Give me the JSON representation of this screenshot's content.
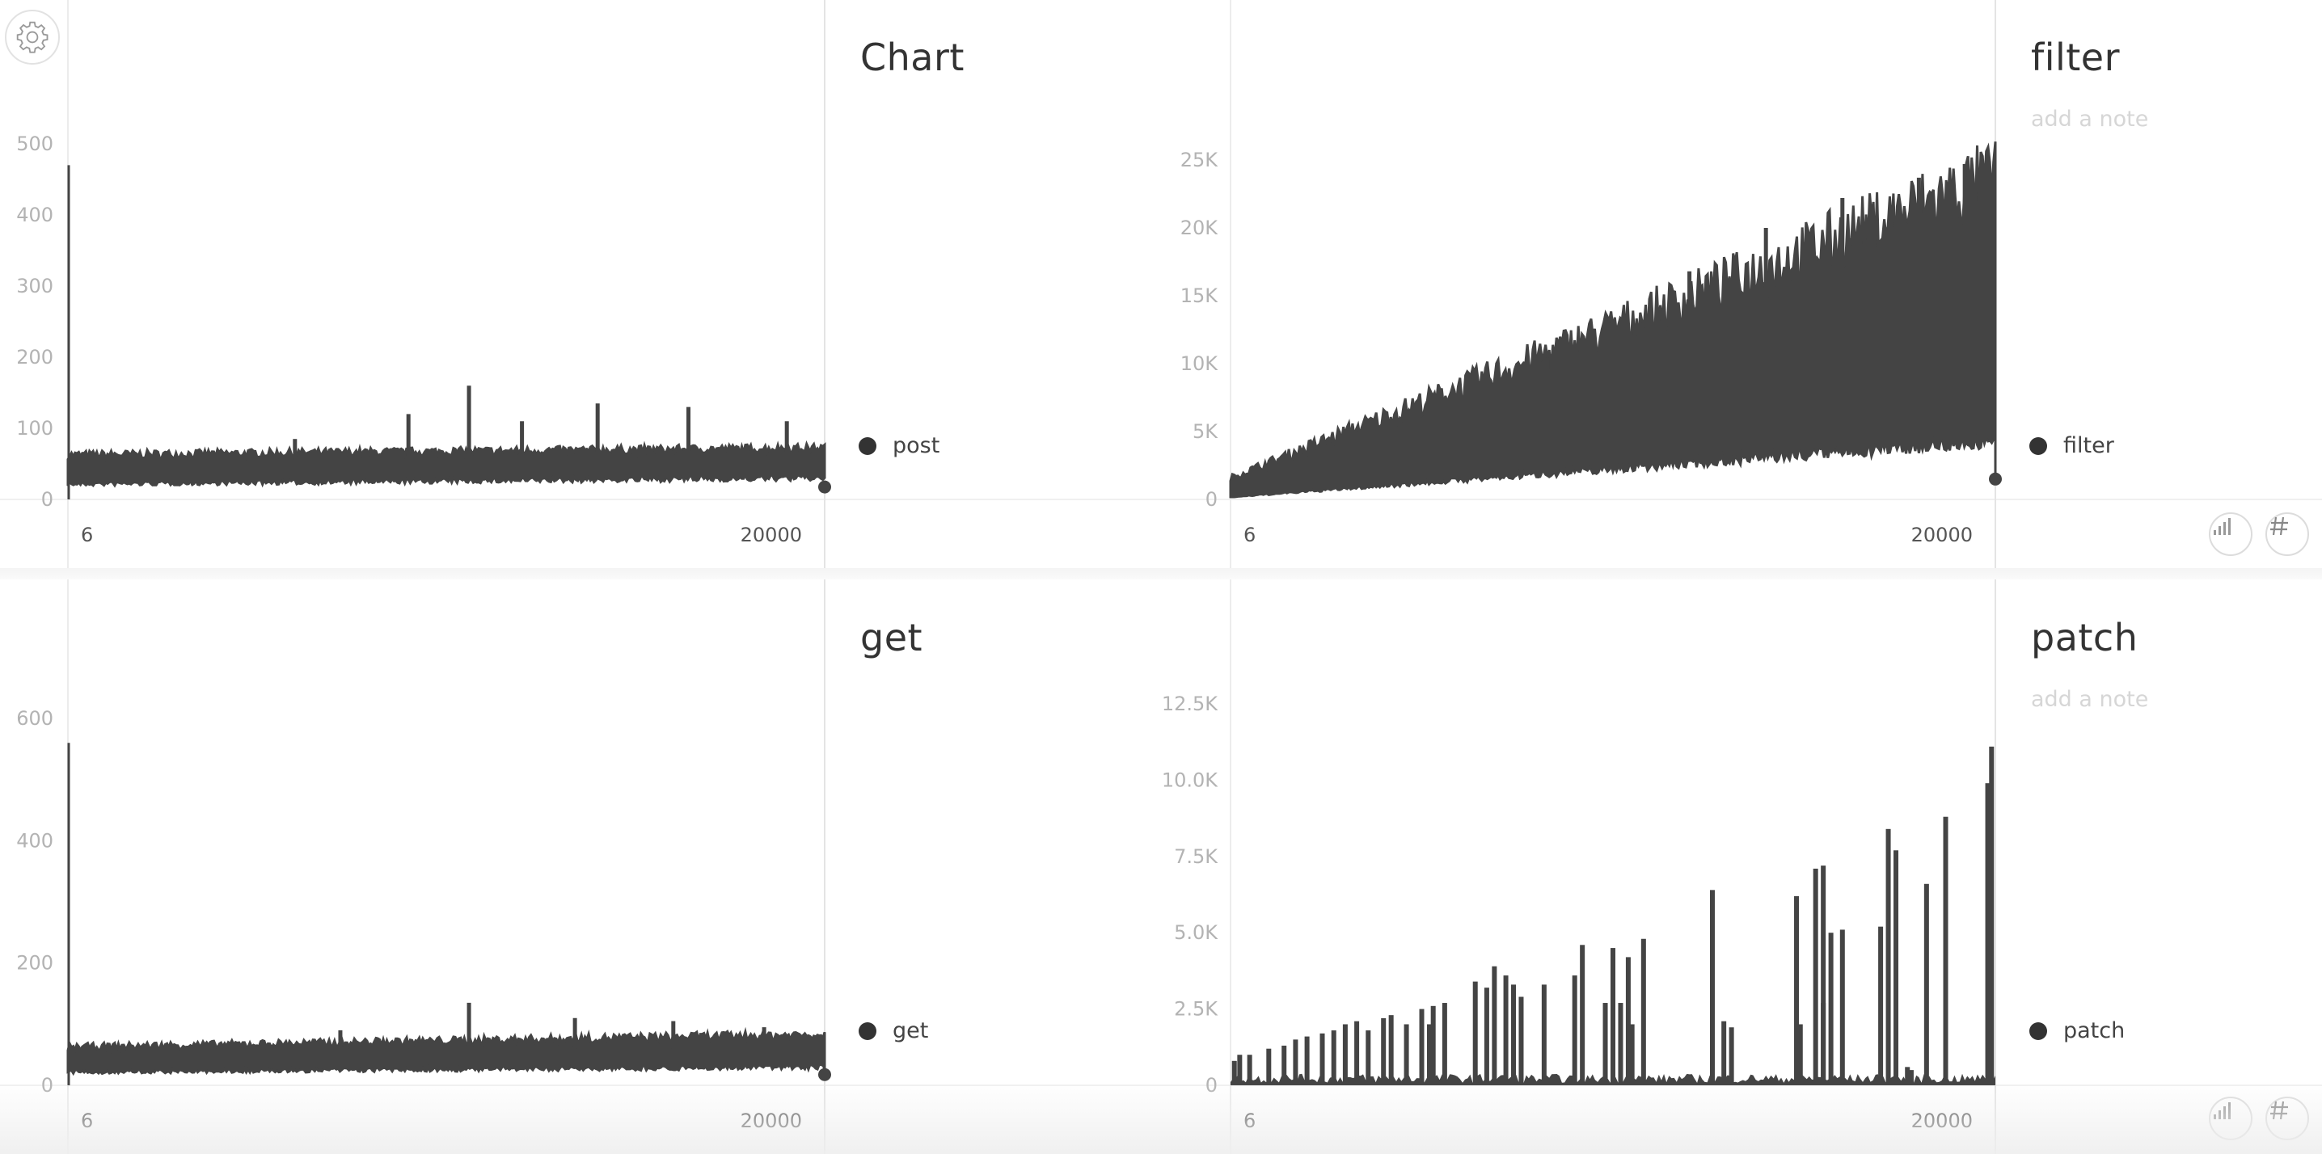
{
  "panels": [
    {
      "title": "Chart",
      "note": "",
      "legend": "post",
      "actions": false
    },
    {
      "title": "filter",
      "note": "add a note",
      "legend": "filter",
      "actions": true
    },
    {
      "title": "get",
      "note": "",
      "legend": "get",
      "actions": false
    },
    {
      "title": "patch",
      "note": "add a note",
      "legend": "patch",
      "actions": true
    }
  ],
  "icons": {
    "settings": "gear-icon",
    "bar_chart": "bar-chart-icon",
    "hash": "hash-icon"
  },
  "colors": {
    "series": "#444444",
    "axis_text": "#b3b3b3",
    "note": "#d6d6d6"
  },
  "chart_data": [
    {
      "type": "area",
      "title": "Chart",
      "series": [
        {
          "name": "post"
        }
      ],
      "x_ticks": [
        "6",
        "20000"
      ],
      "xlim": [
        6,
        20000
      ],
      "ylim": [
        0,
        520
      ],
      "y_ticks": [
        0,
        100,
        200,
        300,
        400,
        500
      ],
      "y_tick_labels": [
        "0",
        "100",
        "200",
        "300",
        "400",
        "500"
      ],
      "profile": {
        "low_start": 25,
        "low_end": 35,
        "high_start": 60,
        "high_end": 70,
        "spike_at_start": 470
      },
      "spikes": [
        [
          0.53,
          160
        ],
        [
          0.45,
          120
        ],
        [
          0.7,
          135
        ],
        [
          0.82,
          130
        ],
        [
          0.95,
          110
        ],
        [
          0.3,
          85
        ],
        [
          0.6,
          110
        ]
      ]
    },
    {
      "type": "area",
      "title": "filter",
      "series": [
        {
          "name": "filter"
        }
      ],
      "x_ticks": [
        "6",
        "20000"
      ],
      "xlim": [
        6,
        20000
      ],
      "ylim": [
        0,
        26500
      ],
      "y_ticks": [
        0,
        5000,
        10000,
        15000,
        20000,
        25000
      ],
      "y_tick_labels": [
        "0",
        "5K",
        "10K",
        "15K",
        "20K",
        "25K"
      ],
      "profile": {
        "low_start": 200,
        "low_end": 5000,
        "high_start": 1500,
        "high_end": 22500,
        "end_value": 1500
      },
      "spikes": [
        [
          0.96,
          24700
        ],
        [
          0.9,
          23700
        ],
        [
          0.8,
          22200
        ],
        [
          0.7,
          20000
        ],
        [
          0.6,
          16800
        ],
        [
          0.42,
          10700
        ]
      ]
    },
    {
      "type": "area",
      "title": "get",
      "series": [
        {
          "name": "get"
        }
      ],
      "x_ticks": [
        "6",
        "20000"
      ],
      "xlim": [
        6,
        20000
      ],
      "ylim": [
        0,
        800
      ],
      "y_ticks": [
        0,
        200,
        400,
        600
      ],
      "y_tick_labels": [
        "0",
        "200",
        "400",
        "600"
      ],
      "profile": {
        "low_start": 25,
        "low_end": 35,
        "high_start": 60,
        "high_end": 80,
        "spike_at_start": 560
      },
      "spikes": [
        [
          0.53,
          135
        ],
        [
          0.67,
          110
        ],
        [
          0.8,
          105
        ],
        [
          0.36,
          90
        ],
        [
          0.92,
          95
        ]
      ]
    },
    {
      "type": "bar",
      "title": "patch",
      "series": [
        {
          "name": "patch"
        }
      ],
      "x_ticks": [
        "6",
        "20000"
      ],
      "xlim": [
        6,
        20000
      ],
      "ylim": [
        0,
        15000
      ],
      "y_ticks": [
        0,
        2500,
        5000,
        7500,
        10000,
        12500
      ],
      "y_tick_labels": [
        "0",
        "2.5K",
        "5.0K",
        "7.5K",
        "10.0K",
        "12.5K"
      ],
      "bars": [
        [
          0.005,
          800
        ],
        [
          0.012,
          1000
        ],
        [
          0.025,
          1000
        ],
        [
          0.05,
          1200
        ],
        [
          0.07,
          1300
        ],
        [
          0.085,
          1500
        ],
        [
          0.1,
          1600
        ],
        [
          0.12,
          1700
        ],
        [
          0.135,
          1800
        ],
        [
          0.15,
          2000
        ],
        [
          0.165,
          2100
        ],
        [
          0.18,
          1800
        ],
        [
          0.2,
          2200
        ],
        [
          0.21,
          2300
        ],
        [
          0.23,
          2000
        ],
        [
          0.25,
          2500
        ],
        [
          0.265,
          2600
        ],
        [
          0.28,
          2700
        ],
        [
          0.26,
          2000
        ],
        [
          0.32,
          3400
        ],
        [
          0.335,
          3200
        ],
        [
          0.345,
          3900
        ],
        [
          0.36,
          3600
        ],
        [
          0.37,
          3300
        ],
        [
          0.38,
          2900
        ],
        [
          0.41,
          3300
        ],
        [
          0.45,
          3600
        ],
        [
          0.46,
          4600
        ],
        [
          0.49,
          2700
        ],
        [
          0.5,
          4500
        ],
        [
          0.51,
          2700
        ],
        [
          0.52,
          4200
        ],
        [
          0.54,
          4800
        ],
        [
          0.525,
          2000
        ],
        [
          0.63,
          6400
        ],
        [
          0.645,
          2100
        ],
        [
          0.655,
          1900
        ],
        [
          0.74,
          6200
        ],
        [
          0.765,
          7100
        ],
        [
          0.775,
          7200
        ],
        [
          0.785,
          5000
        ],
        [
          0.8,
          5100
        ],
        [
          0.775,
          2700
        ],
        [
          0.745,
          2000
        ],
        [
          0.85,
          5200
        ],
        [
          0.86,
          8400
        ],
        [
          0.87,
          7700
        ],
        [
          0.91,
          6600
        ],
        [
          0.935,
          8800
        ],
        [
          0.885,
          600
        ],
        [
          0.89,
          500
        ],
        [
          0.99,
          9900
        ],
        [
          0.995,
          11100
        ]
      ]
    }
  ]
}
